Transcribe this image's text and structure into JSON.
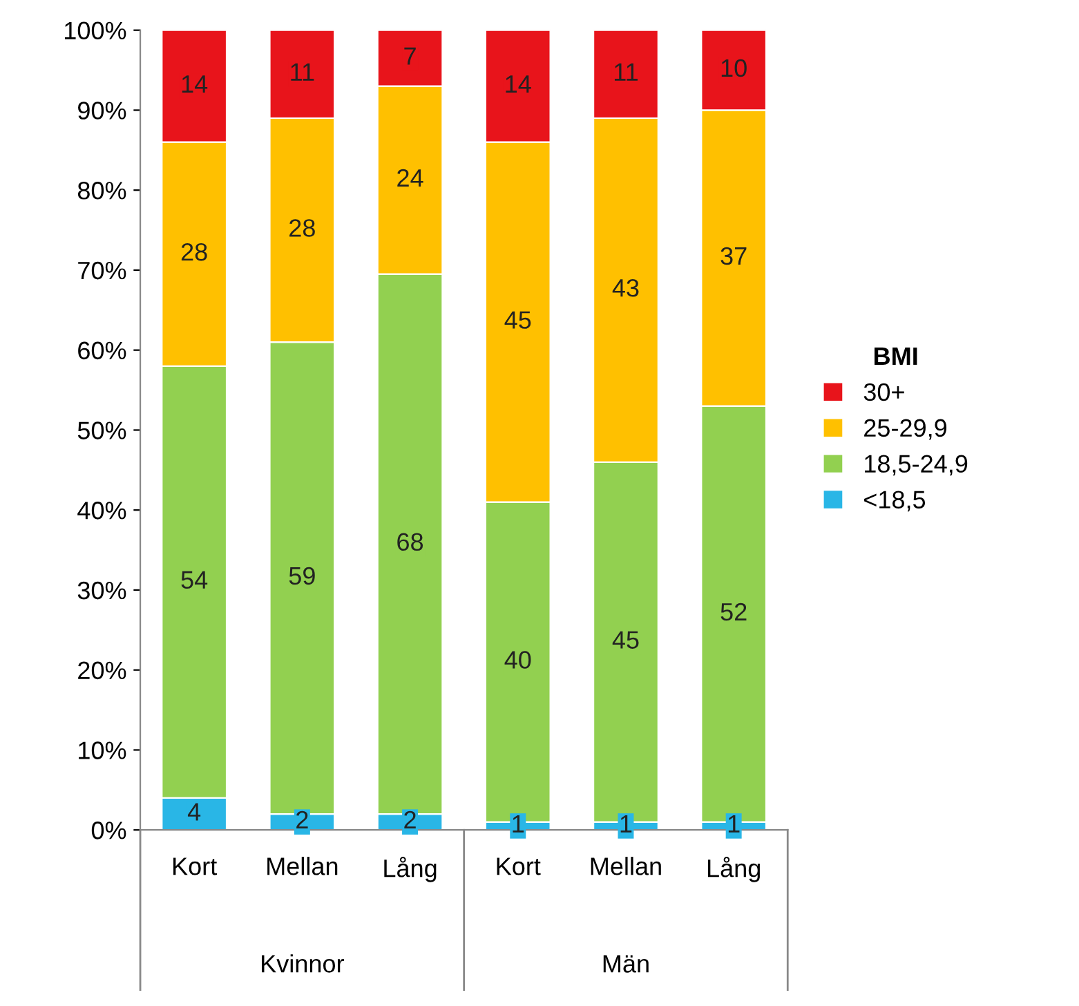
{
  "chart_data": {
    "type": "bar",
    "stacked": true,
    "legend_title": "BMI",
    "legend": "right",
    "categories": [
      "Kort",
      "Mellan",
      "Lång",
      "Kort",
      "Mellan",
      "Lång"
    ],
    "annotations": [
      "Kvinnor",
      "Män"
    ],
    "series": [
      {
        "name": "<18,5",
        "color": "#29b6e6",
        "values": [
          4,
          2,
          2,
          1,
          1,
          1
        ],
        "value_labels": [
          "4",
          "2",
          "2",
          "1",
          "1",
          "1"
        ]
      },
      {
        "name": "18,5-24,9",
        "color": "#92d050",
        "values": [
          54,
          59,
          67.5,
          40,
          45,
          52
        ],
        "value_labels": [
          "54",
          "59",
          "68",
          "40",
          "45",
          "52"
        ]
      },
      {
        "name": "25-29,9",
        "color": "#ffc000",
        "values": [
          28,
          28,
          23.5,
          45,
          43,
          37
        ],
        "value_labels": [
          "28",
          "28",
          "24",
          "45",
          "43",
          "37"
        ]
      },
      {
        "name": "30+",
        "color": "#e8141b",
        "values": [
          14,
          11,
          7,
          14,
          11,
          10
        ],
        "value_labels": [
          "14",
          "11",
          "7",
          "14",
          "11",
          "10"
        ]
      }
    ],
    "ylim": [
      0,
      100
    ],
    "yticks": [
      {
        "value": 0,
        "label": "0%"
      },
      {
        "value": 10,
        "label": "10%"
      },
      {
        "value": 20,
        "label": "20%"
      },
      {
        "value": 30,
        "label": "30%"
      },
      {
        "value": 40,
        "label": "40%"
      },
      {
        "value": 50,
        "label": "50%"
      },
      {
        "value": 60,
        "label": "60%"
      },
      {
        "value": 70,
        "label": "70%"
      },
      {
        "value": 80,
        "label": "80%"
      },
      {
        "value": 90,
        "label": "90%"
      },
      {
        "value": 100,
        "label": "100%"
      }
    ],
    "grid": false
  }
}
